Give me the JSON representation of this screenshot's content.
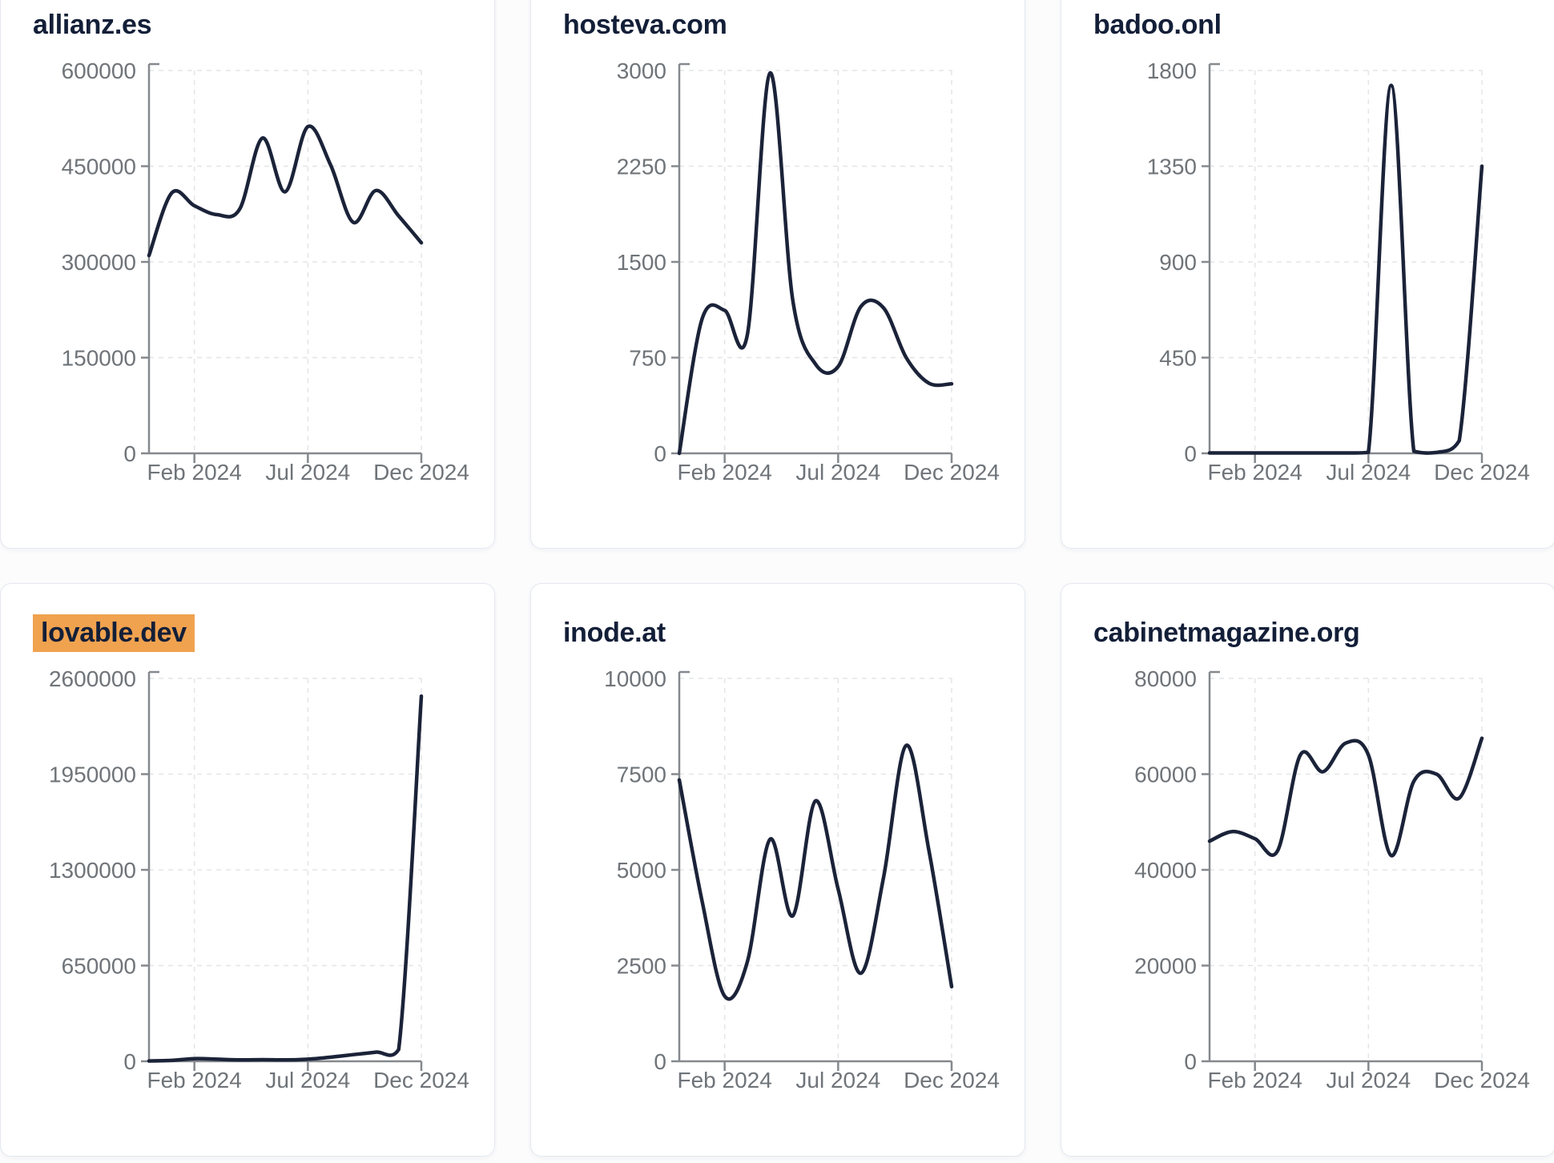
{
  "styles": {
    "page_background": "#fcfcfd",
    "card_background": "#ffffff",
    "card_border": "#e4e9f0",
    "title_color": "#131f38",
    "highlight_color": "#f0a24f",
    "line_color": "#1b2339",
    "axis_color": "#85898e",
    "grid_color": "#e4e5e8",
    "tick_label_color": "#6f7479"
  },
  "chart_data": [
    {
      "type": "line",
      "title": "allianz.es",
      "highlighted": false,
      "x_start": "Dec 2023",
      "x_end": "Dec 2024",
      "xticks": [
        {
          "label": "Feb 2024",
          "month": 2
        },
        {
          "label": "Jul 2024",
          "month": 7
        },
        {
          "label": "Dec 2024",
          "month": 12
        }
      ],
      "ylim": [
        0,
        600000
      ],
      "yticks": [
        "0",
        "150000",
        "300000",
        "450000",
        "600000"
      ],
      "grid": true,
      "values": [
        310000,
        408000,
        388000,
        374000,
        383000,
        494000,
        410000,
        512000,
        452000,
        362000,
        412000,
        372000,
        330000
      ]
    },
    {
      "type": "line",
      "title": "hosteva.com",
      "highlighted": false,
      "x_start": "Dec 2023",
      "x_end": "Dec 2024",
      "xticks": [
        {
          "label": "Feb 2024",
          "month": 2
        },
        {
          "label": "Jul 2024",
          "month": 7
        },
        {
          "label": "Dec 2024",
          "month": 12
        }
      ],
      "ylim": [
        0,
        3000
      ],
      "yticks": [
        "0",
        "750",
        "1500",
        "2250",
        "3000"
      ],
      "grid": true,
      "values": [
        0,
        1050,
        1120,
        930,
        2980,
        1200,
        700,
        680,
        1150,
        1140,
        750,
        550,
        545
      ]
    },
    {
      "type": "line",
      "title": "badoo.onl",
      "highlighted": false,
      "x_start": "Dec 2023",
      "x_end": "Dec 2024",
      "xticks": [
        {
          "label": "Feb 2024",
          "month": 2
        },
        {
          "label": "Jul 2024",
          "month": 7
        },
        {
          "label": "Dec 2024",
          "month": 12
        }
      ],
      "ylim": [
        0,
        1800
      ],
      "yticks": [
        "0",
        "450",
        "900",
        "1350",
        "1800"
      ],
      "grid": true,
      "values": [
        2,
        2,
        2,
        2,
        2,
        2,
        2,
        5,
        1730,
        10,
        4,
        60,
        1350
      ]
    },
    {
      "type": "line",
      "title": "lovable.dev",
      "highlighted": true,
      "x_start": "Dec 2023",
      "x_end": "Dec 2024",
      "xticks": [
        {
          "label": "Feb 2024",
          "month": 2
        },
        {
          "label": "Jul 2024",
          "month": 7
        },
        {
          "label": "Dec 2024",
          "month": 12
        }
      ],
      "ylim": [
        0,
        2600000
      ],
      "yticks": [
        "0",
        "650000",
        "1300000",
        "1950000",
        "2600000"
      ],
      "grid": true,
      "values": [
        2000,
        6000,
        18000,
        14000,
        9000,
        11000,
        9000,
        14000,
        28000,
        45000,
        62000,
        80000,
        2480000
      ]
    },
    {
      "type": "line",
      "title": "inode.at",
      "highlighted": false,
      "x_start": "Dec 2023",
      "x_end": "Dec 2024",
      "xticks": [
        {
          "label": "Feb 2024",
          "month": 2
        },
        {
          "label": "Jul 2024",
          "month": 7
        },
        {
          "label": "Dec 2024",
          "month": 12
        }
      ],
      "ylim": [
        0,
        10000
      ],
      "yticks": [
        "0",
        "2500",
        "5000",
        "7500",
        "10000"
      ],
      "grid": true,
      "values": [
        7350,
        4200,
        1700,
        2600,
        5800,
        3800,
        6800,
        4500,
        2300,
        4800,
        8250,
        5500,
        1950
      ]
    },
    {
      "type": "line",
      "title": "cabinetmagazine.org",
      "highlighted": false,
      "x_start": "Dec 2023",
      "x_end": "Dec 2024",
      "xticks": [
        {
          "label": "Feb 2024",
          "month": 2
        },
        {
          "label": "Jul 2024",
          "month": 7
        },
        {
          "label": "Dec 2024",
          "month": 12
        }
      ],
      "ylim": [
        0,
        80000
      ],
      "yticks": [
        "0",
        "20000",
        "40000",
        "60000",
        "80000"
      ],
      "grid": true,
      "values": [
        46000,
        48000,
        46500,
        44000,
        64000,
        60500,
        66500,
        64000,
        43000,
        58500,
        60000,
        55000,
        67500
      ]
    }
  ]
}
